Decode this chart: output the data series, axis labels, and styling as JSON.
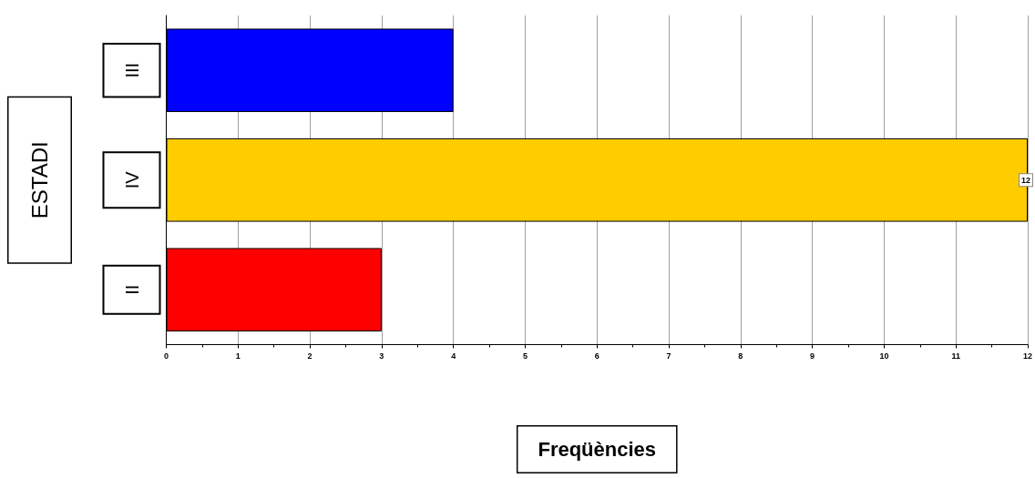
{
  "chart_data": {
    "type": "bar",
    "orientation": "horizontal",
    "xlabel": "Freqüències",
    "ylabel": "ESTADI",
    "categories": [
      "III",
      "IV",
      "II"
    ],
    "values": [
      4,
      12,
      3
    ],
    "colors": [
      "#0000ff",
      "#ffcc00",
      "#ff0000"
    ],
    "value_labels": [
      null,
      "12",
      null
    ],
    "xlim": [
      0,
      12
    ],
    "xticks": [
      0,
      1,
      2,
      3,
      4,
      5,
      6,
      7,
      8,
      9,
      10,
      11,
      12
    ],
    "grid": "x"
  }
}
